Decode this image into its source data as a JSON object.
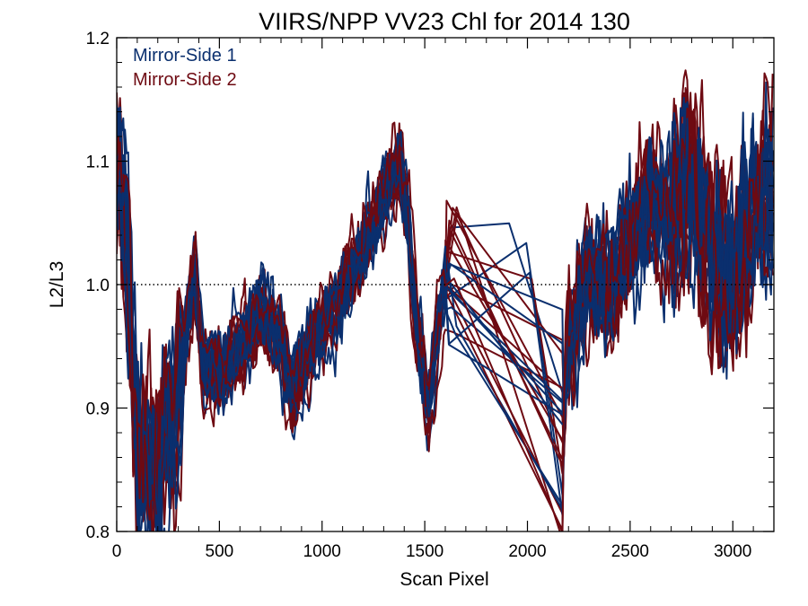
{
  "chart_data": {
    "type": "line",
    "title": "VIIRS/NPP VV23 Chl for 2014 130",
    "xlabel": "Scan Pixel",
    "ylabel": "L2/L3",
    "xlim": [
      0,
      3200
    ],
    "ylim": [
      0.8,
      1.2
    ],
    "x_ticks": [
      0,
      500,
      1000,
      1500,
      2000,
      2500,
      3000
    ],
    "y_ticks": [
      0.8,
      0.9,
      1.0,
      1.1,
      1.2
    ],
    "x_tick_labels": [
      "0",
      "500",
      "1000",
      "1500",
      "2000",
      "2500",
      "3000"
    ],
    "y_tick_labels": [
      "0.8",
      "0.9",
      "1.0",
      "1.1",
      "1.2"
    ],
    "reference_line": {
      "y": 1.0,
      "style": "dotted"
    },
    "legend_placement": "top-left",
    "series": [
      {
        "name": "Mirror-Side 1",
        "color": "#0a2f6e",
        "line_count": 12
      },
      {
        "name": "Mirror-Side 2",
        "color": "#6e0a12",
        "line_count": 14
      }
    ],
    "mean_profile": {
      "x": [
        0,
        40,
        100,
        160,
        220,
        300,
        380,
        420,
        500,
        600,
        700,
        800,
        850,
        900,
        1000,
        1100,
        1200,
        1300,
        1380,
        1420,
        1460,
        1500,
        1520,
        1560,
        1600,
        2170,
        2200,
        2300,
        2400,
        2500,
        2600,
        2700,
        2800,
        2900,
        3000,
        3100,
        3200
      ],
      "y": [
        1.1,
        1.05,
        0.87,
        0.84,
        0.86,
        0.92,
        1.01,
        0.93,
        0.93,
        0.95,
        0.98,
        0.95,
        0.92,
        0.93,
        0.97,
        0.99,
        1.03,
        1.07,
        1.1,
        1.05,
        0.96,
        0.92,
        0.9,
        0.96,
        1.0,
        0.87,
        0.95,
        1.01,
        1.0,
        1.04,
        1.07,
        1.05,
        1.09,
        1.02,
        1.0,
        1.06,
        1.08
      ]
    },
    "gap_segment": {
      "x_start": 1600,
      "x_end": 2170
    }
  }
}
